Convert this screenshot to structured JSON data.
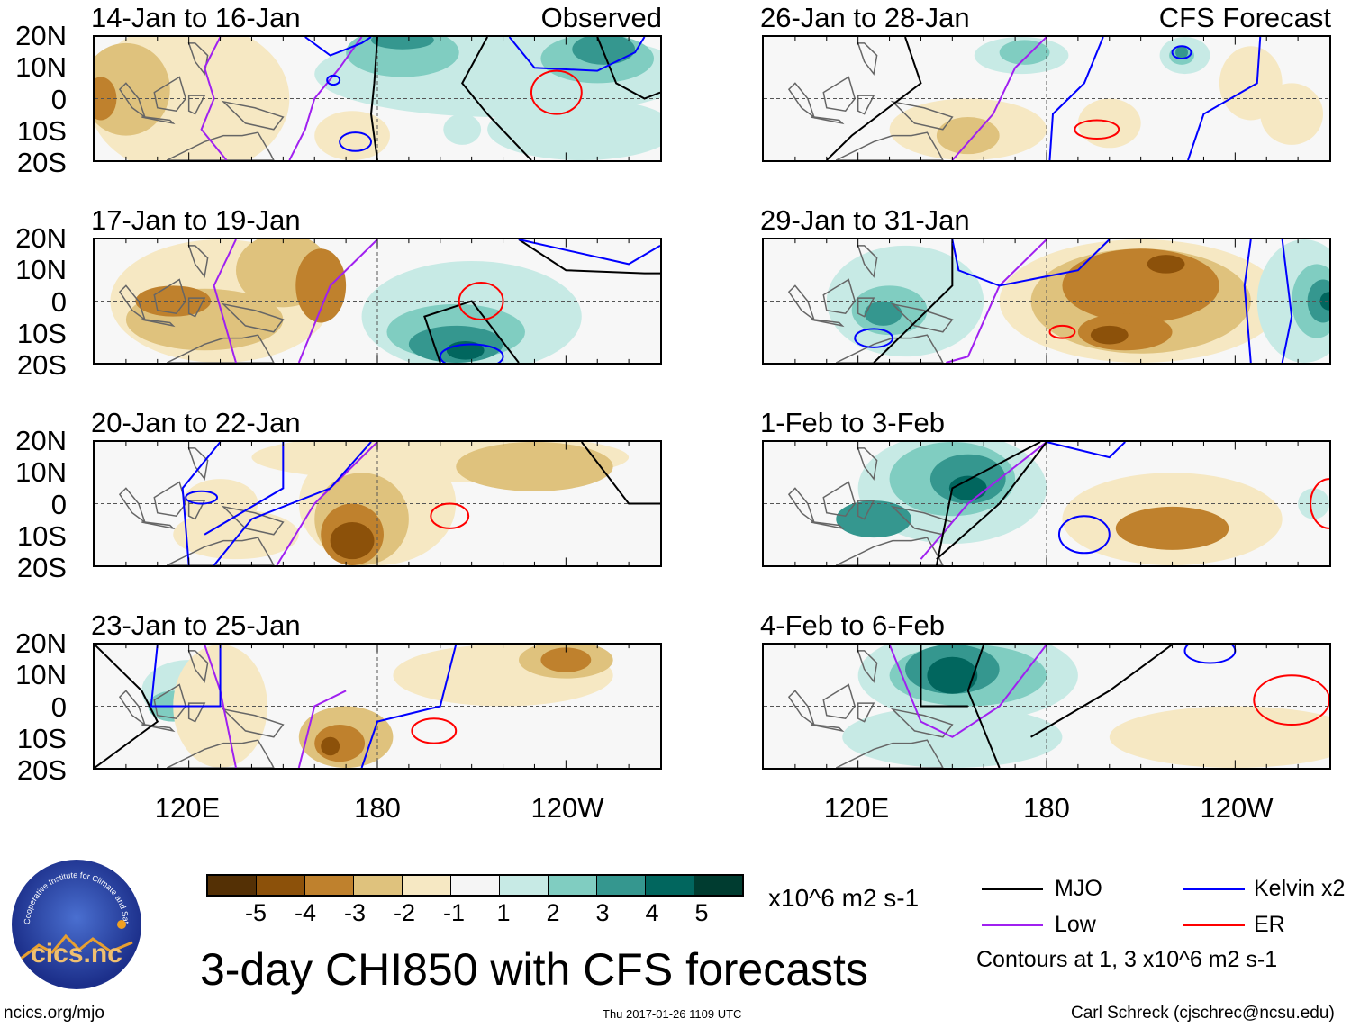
{
  "panels": [
    {
      "title": "14-Jan to 16-Jan",
      "tag": "Observed"
    },
    {
      "title": "26-Jan to 28-Jan",
      "tag": "CFS Forecast"
    },
    {
      "title": "17-Jan to 19-Jan",
      "tag": ""
    },
    {
      "title": "29-Jan to 31-Jan",
      "tag": ""
    },
    {
      "title": "20-Jan to 22-Jan",
      "tag": ""
    },
    {
      "title": "1-Feb to 3-Feb",
      "tag": ""
    },
    {
      "title": "23-Jan to 25-Jan",
      "tag": ""
    },
    {
      "title": "4-Feb to 6-Feb",
      "tag": ""
    }
  ],
  "lat_labels": [
    "20N",
    "10N",
    "0",
    "10S",
    "20S"
  ],
  "lon_labels": [
    "120E",
    "180",
    "120W"
  ],
  "colorbar": {
    "ticks": [
      "-5",
      "-4",
      "-3",
      "-2",
      "-1",
      "1",
      "2",
      "3",
      "4",
      "5"
    ],
    "colors": [
      "#543005",
      "#8c510a",
      "#bf812d",
      "#dfc27d",
      "#f6e8c3",
      "#f5f5f5",
      "#c7eae5",
      "#80cdc1",
      "#35978f",
      "#01665e",
      "#003c30"
    ],
    "units": "x10^6 m2 s-1"
  },
  "legend": {
    "items": [
      {
        "label": "MJO",
        "color": "#000000"
      },
      {
        "label": "Kelvin x2",
        "color": "#0000ff"
      },
      {
        "label": "Low",
        "color": "#a020f0"
      },
      {
        "label": "ER",
        "color": "#ff0000"
      }
    ],
    "note": "Contours at 1, 3 x10^6 m2 s-1"
  },
  "title": "3-day CHI850 with CFS forecasts",
  "logo": "cics.nc",
  "logo_ring": "Cooperative Institute for Climate and Satellites",
  "footer": {
    "left": "ncics.org/mjo",
    "center": "Thu 2017-01-26 1109 UTC",
    "right": "Carl Schreck (cjschrec@ncsu.edu)"
  },
  "chart_data": {
    "type": "heatmap",
    "title": "3-day CHI850 with CFS forecasts",
    "variable": "CHI850 anomaly",
    "units": "x10^6 m2 s-1",
    "xlim": [
      "90E",
      "90W"
    ],
    "ylim": [
      "20S",
      "20N"
    ],
    "levels": [
      -5,
      -4,
      -3,
      -2,
      -1,
      1,
      2,
      3,
      4,
      5
    ],
    "contour_levels": [
      1,
      3
    ]
  }
}
